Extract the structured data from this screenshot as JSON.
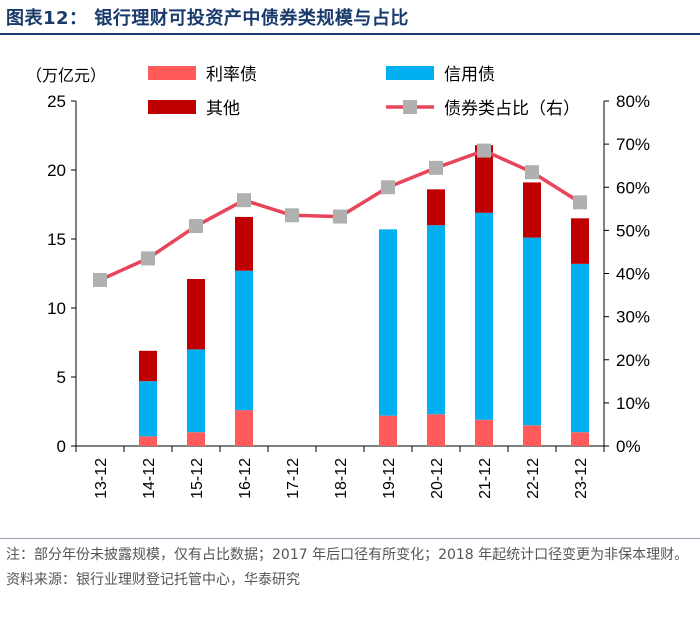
{
  "figure": {
    "title": "图表12：  银行理财可投资产中债券类规模与占比"
  },
  "chart_data": {
    "type": "bar",
    "stacked": true,
    "categories": [
      "13-12",
      "14-12",
      "15-12",
      "16-12",
      "17-12",
      "18-12",
      "19-12",
      "20-12",
      "21-12",
      "22-12",
      "23-12"
    ],
    "series": [
      {
        "name": "利率债",
        "color": "#ff5b5b",
        "axis": "left",
        "values": [
          null,
          0.7,
          1.0,
          2.6,
          null,
          null,
          2.2,
          2.3,
          1.9,
          1.5,
          1.0
        ]
      },
      {
        "name": "信用债",
        "color": "#00b0f0",
        "axis": "left",
        "values": [
          null,
          4.0,
          6.0,
          10.1,
          null,
          null,
          13.5,
          13.7,
          15.0,
          13.6,
          12.2
        ]
      },
      {
        "name": "其他",
        "color": "#c00000",
        "axis": "left",
        "values": [
          null,
          2.2,
          5.1,
          3.9,
          null,
          null,
          null,
          2.6,
          4.9,
          4.0,
          3.3
        ]
      },
      {
        "name": "债券类占比（右）",
        "type": "line",
        "axis": "right",
        "color": "#e8445a",
        "marker_color": "#b0b0b0",
        "values": [
          38.5,
          43.5,
          51.0,
          57.0,
          53.5,
          53.2,
          60.0,
          64.5,
          68.5,
          63.5,
          56.5
        ]
      }
    ],
    "y_left": {
      "label": "（万亿元）",
      "range": [
        0,
        25
      ],
      "ticks": [
        "0",
        "5",
        "10",
        "15",
        "20",
        "25"
      ]
    },
    "y_right": {
      "range": [
        0,
        80
      ],
      "ticks": [
        "0%",
        "10%",
        "20%",
        "30%",
        "40%",
        "50%",
        "60%",
        "70%",
        "80%"
      ]
    },
    "legend": {
      "placement": "top"
    }
  },
  "notes": {
    "note": "注：部分年份未披露规模，仅有占比数据；2017 年后口径有所变化；2018 年起统计口径变更为非保本理财。",
    "source": "资料来源：银行业理财登记托管中心，华泰研究"
  }
}
